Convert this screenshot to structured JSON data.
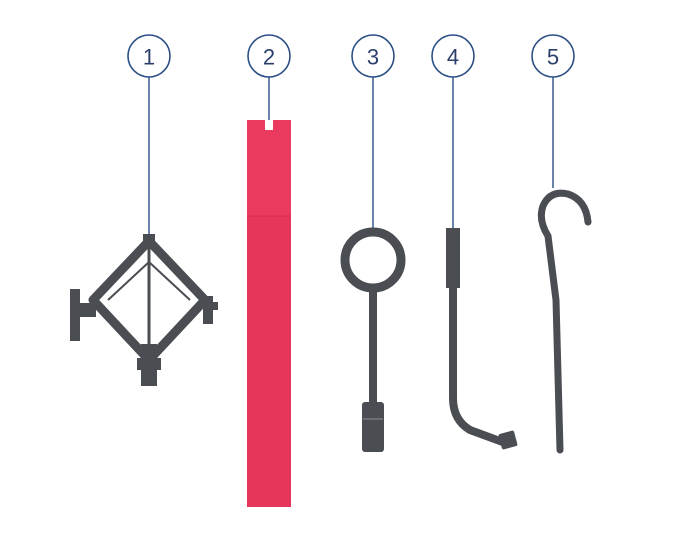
{
  "callouts": [
    {
      "number": "1",
      "item": "scissor-jack"
    },
    {
      "number": "2",
      "item": "tool-bag"
    },
    {
      "number": "3",
      "item": "ring-handle-wrench"
    },
    {
      "number": "4",
      "item": "wheel-brace"
    },
    {
      "number": "5",
      "item": "towing-hook"
    }
  ],
  "colors": {
    "callout_stroke": "#2b4f86",
    "callout_text": "#2b3f6b",
    "tool_gray": "#4a4d52",
    "bag_red": "#e8355a"
  }
}
